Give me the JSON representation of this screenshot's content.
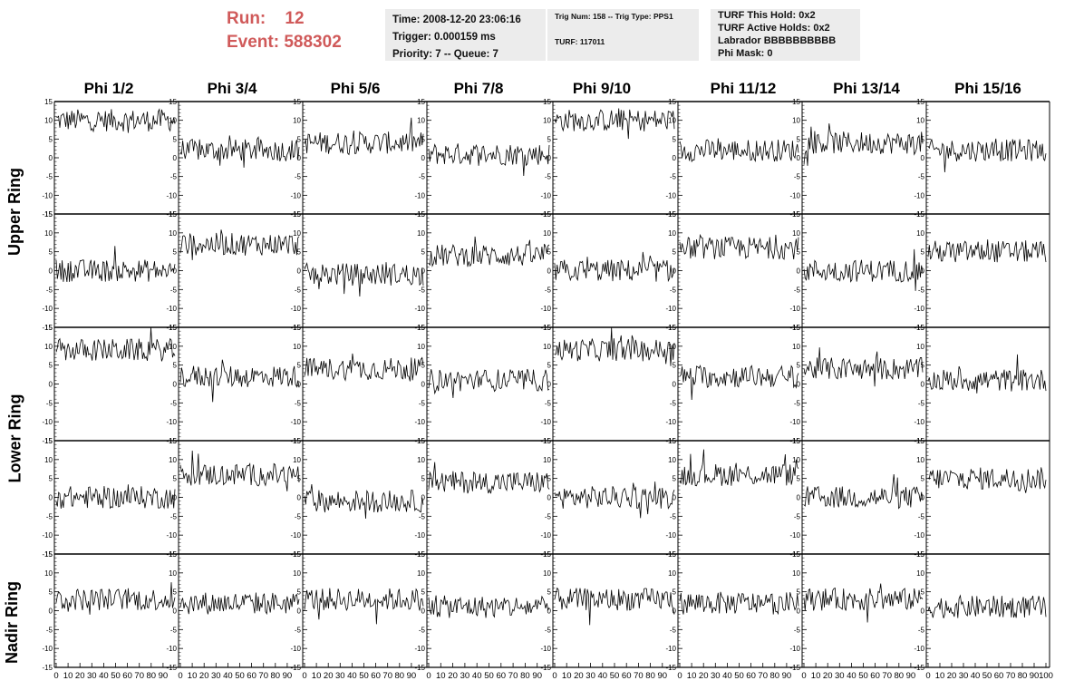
{
  "header": {
    "run_label": "Run:",
    "run_value": "12",
    "event_label": "Event:",
    "event_value": "588302"
  },
  "info_box1": {
    "time": "Time: 2008-12-20 23:06:16",
    "trigger": "Trigger: 0.000159 ms",
    "priority": "Priority: 7 -- Queue: 7"
  },
  "info_box2": {
    "trig": "Trig Num: 158 -- Trig Type: PPS1",
    "turf": "TURF: 117011"
  },
  "info_box3": {
    "this_hold": "TURF This Hold: 0x2",
    "active_holds": "TURF Active Holds: 0x2",
    "labrador": "Labrador BBBBBBBBBB",
    "phi_mask": "Phi Mask: 0"
  },
  "columns": [
    "Phi 1/2",
    "Phi 3/4",
    "Phi 5/6",
    "Phi 7/8",
    "Phi 9/10",
    "Phi 11/12",
    "Phi 13/14",
    "Phi 15/16"
  ],
  "ring_labels": {
    "upper": "Upper Ring",
    "lower": "Lower Ring",
    "nadir": "Nadir Ring"
  },
  "chart_data": {
    "type": "line",
    "rows": 5,
    "cols": 8,
    "ylim": [
      -15,
      15
    ],
    "xlim": [
      0,
      100
    ],
    "y_ticks": [
      -15,
      -10,
      -5,
      0,
      5,
      10,
      15
    ],
    "x_tick_labels": [
      "0",
      "10",
      "20",
      "30",
      "40",
      "50",
      "60",
      "70",
      "80",
      "90",
      "100"
    ],
    "samples_per_trace": 100,
    "baselines": [
      [
        10,
        2,
        4,
        1,
        10,
        2,
        4,
        2
      ],
      [
        0,
        7,
        -1,
        4,
        0,
        6,
        0,
        5
      ],
      [
        9,
        2,
        4,
        1,
        9,
        2,
        4,
        1
      ],
      [
        0,
        6,
        -1,
        4,
        0,
        6,
        0,
        5
      ],
      [
        3,
        2,
        3,
        1,
        3,
        2,
        3,
        1
      ]
    ],
    "noise_amplitude": 3
  }
}
